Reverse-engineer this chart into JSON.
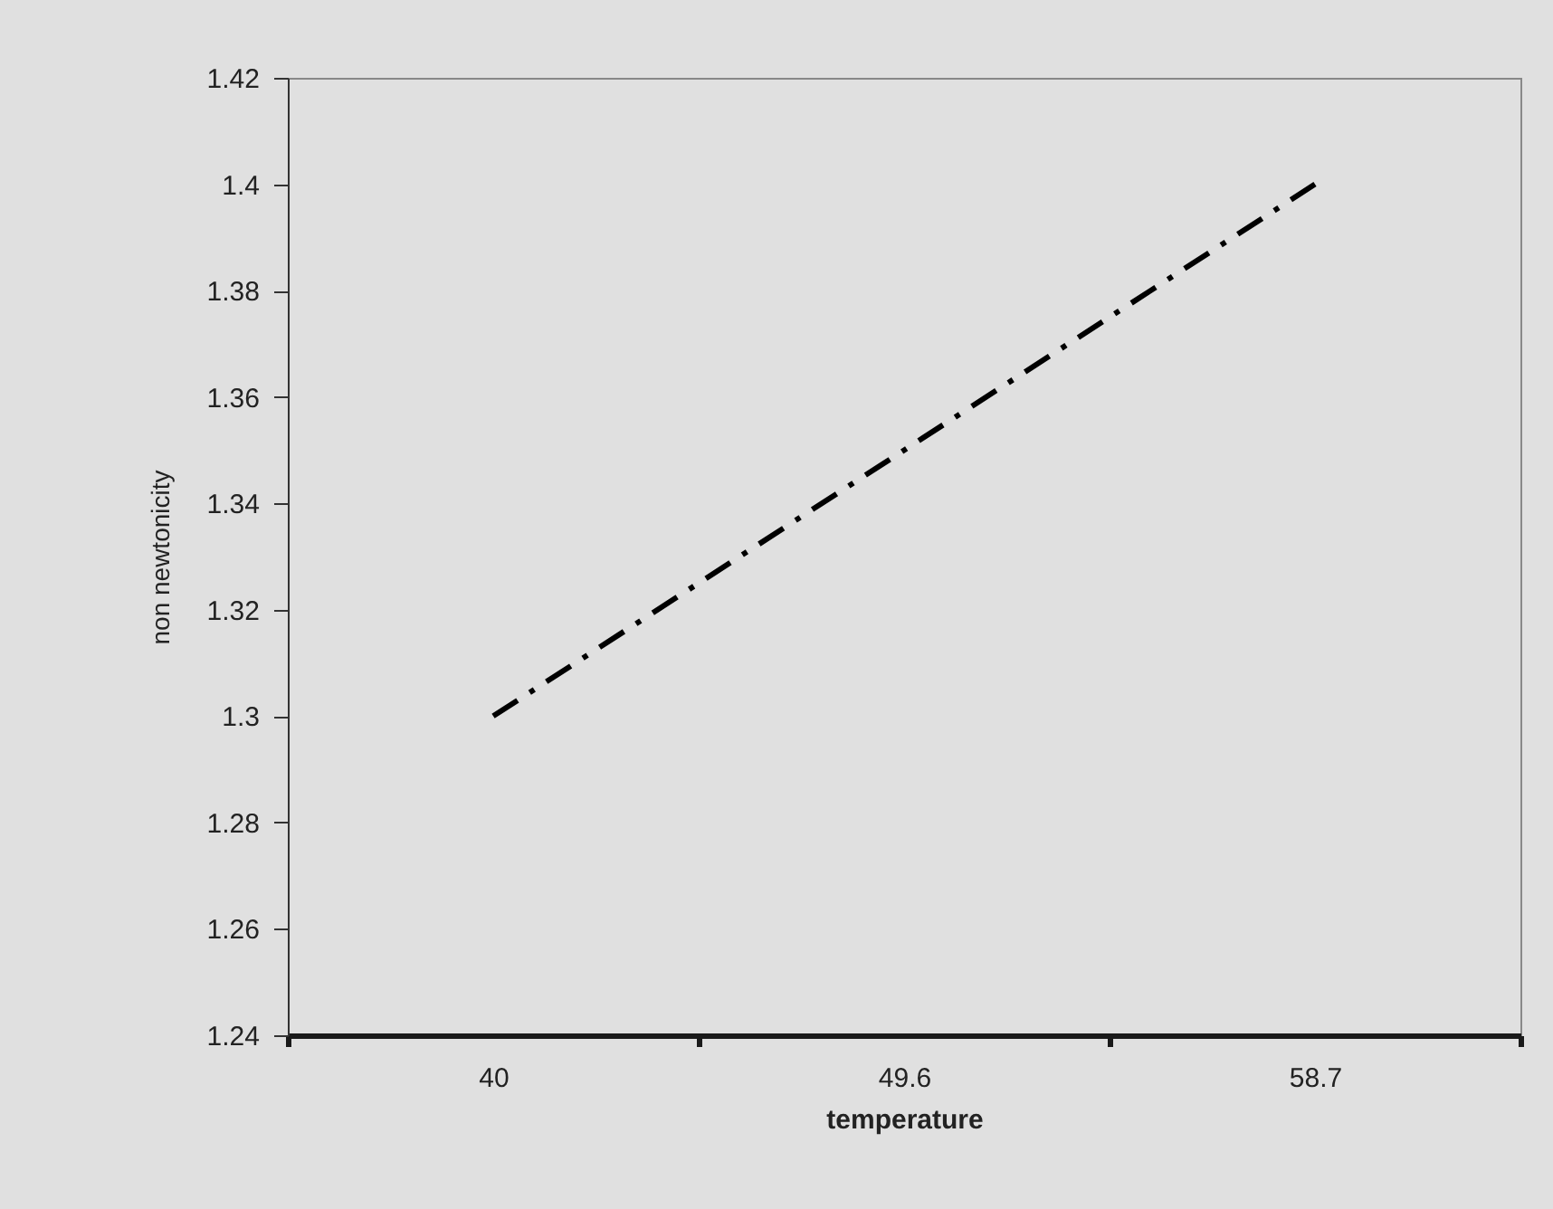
{
  "chart_data": {
    "type": "line",
    "xlabel": "temperature",
    "ylabel": "non newtonicity",
    "categories": [
      "40",
      "49.6",
      "58.7"
    ],
    "series": [
      {
        "color": "#000000",
        "values": [
          1.3,
          1.35,
          1.4
        ]
      }
    ],
    "ylim": [
      1.24,
      1.42
    ],
    "yticks": [
      1.24,
      1.26,
      1.28,
      1.3,
      1.32,
      1.34,
      1.36,
      1.38,
      1.4,
      1.42
    ],
    "grid": false,
    "marker": "none",
    "line_style": "dashed"
  }
}
